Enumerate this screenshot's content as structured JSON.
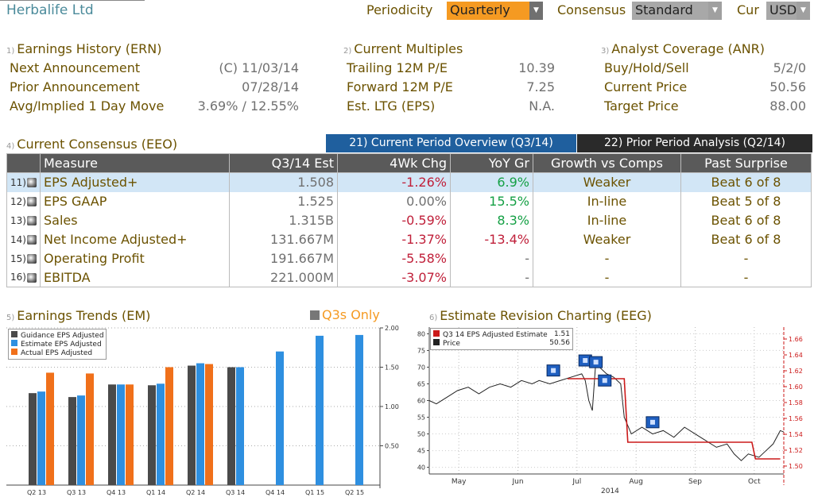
{
  "header": {
    "company": "Herbalife Ltd",
    "periodicity_label": "Periodicity",
    "periodicity_value": "Quarterly",
    "consensus_label": "Consensus",
    "consensus_value": "Standard",
    "cur_label": "Cur",
    "cur_value": "USD"
  },
  "ern": {
    "num": "1)",
    "title": "Earnings History (ERN)",
    "rows": [
      {
        "label": "Next Announcement",
        "value": "(C)  11/03/14"
      },
      {
        "label": "Prior Announcement",
        "value": "07/28/14"
      },
      {
        "label": "Avg/Implied 1 Day Move",
        "value": "3.69% / 12.55%"
      }
    ]
  },
  "multiples": {
    "num": "2)",
    "title": "Current Multiples",
    "rows": [
      {
        "label": "Trailing 12M P/E",
        "value": "10.39"
      },
      {
        "label": "Forward 12M P/E",
        "value": "7.25"
      },
      {
        "label": "Est. LTG (EPS)",
        "value": "N.A."
      }
    ]
  },
  "anr": {
    "num": "3)",
    "title": "Analyst Coverage (ANR)",
    "rows": [
      {
        "label": "Buy/Hold/Sell",
        "value": "5/2/0"
      },
      {
        "label": "Current Price",
        "value": "50.56"
      },
      {
        "label": "Target Price",
        "value": "88.00"
      }
    ]
  },
  "consensus_section": {
    "num": "4)",
    "title": "Current Consensus (EEO)",
    "tab_current": "21) Current Period Overview (Q3/14)",
    "tab_prior": "22) Prior Period Analysis (Q2/14)"
  },
  "table": {
    "headers": [
      "Measure",
      "Q3/14 Est",
      "4Wk Chg",
      "YoY Gr",
      "Growth vs Comps",
      "Past Surprise"
    ],
    "rows": [
      {
        "idx": "11)",
        "measure": "EPS Adjusted+",
        "est": "1.508",
        "chg": "-1.26%",
        "chg_color": "red",
        "yoy": "6.9%",
        "yoy_color": "green",
        "growth": "Weaker",
        "past": "Beat 6 of 8"
      },
      {
        "idx": "12)",
        "measure": "EPS GAAP",
        "est": "1.525",
        "chg": "0.00%",
        "chg_color": "dgrey",
        "yoy": "15.5%",
        "yoy_color": "green",
        "growth": "In-line",
        "past": "Beat 5 of 8"
      },
      {
        "idx": "13)",
        "measure": "Sales",
        "est": "1.315B",
        "chg": "-0.59%",
        "chg_color": "red",
        "yoy": "8.3%",
        "yoy_color": "green",
        "growth": "In-line",
        "past": "Beat 6 of 8"
      },
      {
        "idx": "14)",
        "measure": "Net Income Adjusted+",
        "est": "131.667M",
        "chg": "-1.37%",
        "chg_color": "red",
        "yoy": "-13.4%",
        "yoy_color": "red",
        "growth": "Weaker",
        "past": "Beat 6 of 8"
      },
      {
        "idx": "15)",
        "measure": "Operating Profit",
        "est": "191.667M",
        "chg": "-5.58%",
        "chg_color": "red",
        "yoy": "-",
        "yoy_color": "dgrey",
        "growth": "-",
        "past": "-"
      },
      {
        "idx": "16)",
        "measure": "EBITDA",
        "est": "221.000M",
        "chg": "-3.07%",
        "chg_color": "red",
        "yoy": "-",
        "yoy_color": "dgrey",
        "growth": "-",
        "past": "-"
      }
    ]
  },
  "em": {
    "num": "5)",
    "title": "Earnings Trends (EM)",
    "q3_label": "Q3s Only"
  },
  "eeg": {
    "num": "6)",
    "title": "Estimate Revision Charting (EEG)",
    "year": "2014"
  },
  "colors": {
    "guidance": "#4a4a4a",
    "estimate": "#2e8fe0",
    "actual": "#f0701a",
    "eps_line": "#cc1a1a",
    "price_line": "#222222"
  },
  "chart_data": [
    {
      "type": "bar",
      "categories": [
        "Q2 13",
        "Q3 13",
        "Q4 13",
        "Q1 14",
        "Q2 14",
        "Q3 14",
        "Q4 14",
        "Q1 15",
        "Q2 15"
      ],
      "series": [
        {
          "name": "Guidance EPS Adjusted",
          "values": [
            1.17,
            1.12,
            1.28,
            1.27,
            1.52,
            1.5,
            null,
            null,
            null
          ]
        },
        {
          "name": "Estimate EPS Adjusted",
          "values": [
            1.19,
            1.14,
            1.28,
            1.29,
            1.55,
            1.5,
            1.7,
            1.9,
            1.91
          ]
        },
        {
          "name": "Actual EPS Adjusted",
          "values": [
            1.43,
            1.42,
            1.28,
            1.5,
            1.54,
            null,
            null,
            null,
            null
          ]
        }
      ],
      "ylim": [
        0,
        2.0
      ],
      "yticks": [
        "0.50",
        "1.00",
        "1.50",
        "2.00"
      ],
      "legend": "top-left"
    },
    {
      "type": "line",
      "x_ticks": [
        "May",
        "Jun",
        "Jul",
        "Aug",
        "Sep",
        "Oct"
      ],
      "left_axis": {
        "ylim": [
          38,
          82
        ],
        "ticks": [
          "40",
          "45",
          "50",
          "55",
          "60",
          "65",
          "70",
          "75",
          "80"
        ]
      },
      "right_axis": {
        "ylim": [
          1.49,
          1.675
        ],
        "ticks": [
          "1.50",
          "1.52",
          "1.54",
          "1.56",
          "1.58",
          "1.60",
          "1.62",
          "1.64",
          "1.66"
        ]
      },
      "series": [
        {
          "name": "Q3 14 EPS Adjusted Estimate",
          "last": "1.51",
          "axis": "right",
          "points": [
            [
              0.39,
              1.61
            ],
            [
              0.55,
              1.61
            ],
            [
              0.56,
              1.53
            ],
            [
              0.91,
              1.53
            ],
            [
              0.92,
              1.509
            ],
            [
              0.99,
              1.509
            ]
          ]
        },
        {
          "name": "Price",
          "last": "50.56",
          "axis": "left",
          "points": [
            [
              0.0,
              60
            ],
            [
              0.02,
              59
            ],
            [
              0.05,
              61
            ],
            [
              0.08,
              63
            ],
            [
              0.11,
              64
            ],
            [
              0.14,
              62
            ],
            [
              0.17,
              64
            ],
            [
              0.2,
              65
            ],
            [
              0.23,
              64
            ],
            [
              0.26,
              66
            ],
            [
              0.29,
              65
            ],
            [
              0.31,
              66
            ],
            [
              0.34,
              65
            ],
            [
              0.37,
              66
            ],
            [
              0.4,
              67
            ],
            [
              0.43,
              68
            ],
            [
              0.44,
              66
            ],
            [
              0.45,
              60
            ],
            [
              0.46,
              57
            ],
            [
              0.47,
              72
            ],
            [
              0.48,
              70
            ],
            [
              0.5,
              68
            ],
            [
              0.52,
              67
            ],
            [
              0.54,
              65
            ],
            [
              0.55,
              55
            ],
            [
              0.57,
              50
            ],
            [
              0.6,
              52
            ],
            [
              0.63,
              50
            ],
            [
              0.66,
              51
            ],
            [
              0.69,
              49
            ],
            [
              0.72,
              52
            ],
            [
              0.75,
              50
            ],
            [
              0.78,
              48
            ],
            [
              0.81,
              46
            ],
            [
              0.84,
              47
            ],
            [
              0.86,
              44
            ],
            [
              0.88,
              42
            ],
            [
              0.9,
              44
            ],
            [
              0.93,
              43
            ],
            [
              0.95,
              45
            ],
            [
              0.97,
              47
            ],
            [
              0.99,
              51
            ],
            [
              1.0,
              50.56
            ]
          ]
        }
      ],
      "legend": "top-left"
    }
  ]
}
